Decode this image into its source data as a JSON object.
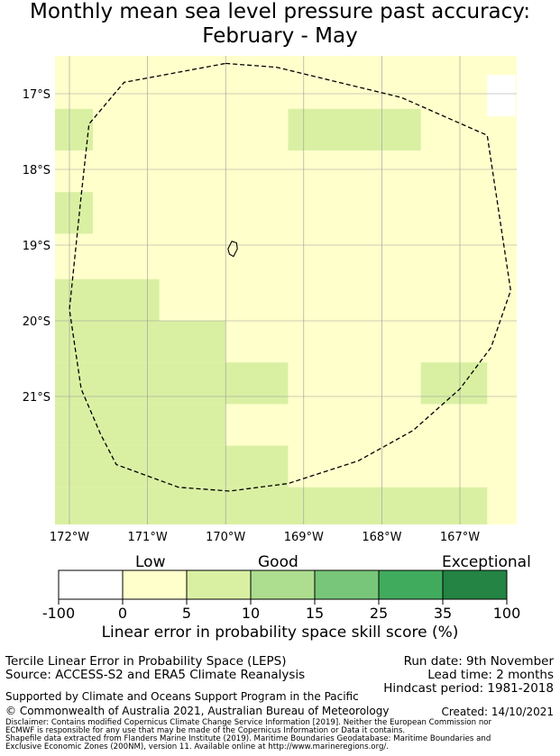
{
  "title": {
    "line1": "Monthly mean sea level pressure past accuracy:",
    "line2": "February - May"
  },
  "map": {
    "lat_labels": [
      "17°S",
      "18°S",
      "19°S",
      "20°S",
      "21°S"
    ],
    "lon_labels": [
      "172°W",
      "171°W",
      "170°W",
      "169°W",
      "168°W",
      "167°W"
    ],
    "lon_range_deg": [
      -172.2,
      -166.3
    ],
    "lat_range_deg": [
      -16.5,
      -22.7
    ],
    "colors": {
      "no_skill": "#ffffff",
      "low": "#ffffcc",
      "good": "#d9f0a3",
      "gridline": "#999999",
      "boundary": "#000000"
    },
    "cell_grid_note": "Pale yellow = Low (0-5); light green = Good (5-10)",
    "green_cells_deg": [
      {
        "lon": [
          -172.2,
          -171.7
        ],
        "lat": [
          -17.2,
          -17.75
        ]
      },
      {
        "lon": [
          -169.2,
          -167.5
        ],
        "lat": [
          -17.2,
          -17.75
        ]
      },
      {
        "lon": [
          -172.2,
          -171.7
        ],
        "lat": [
          -18.3,
          -18.85
        ]
      },
      {
        "lon": [
          -172.2,
          -170.85
        ],
        "lat": [
          -19.45,
          -20.0
        ]
      },
      {
        "lon": [
          -172.2,
          -170.0
        ],
        "lat": [
          -20.0,
          -20.55
        ]
      },
      {
        "lon": [
          -172.2,
          -169.2
        ],
        "lat": [
          -20.55,
          -21.1
        ]
      },
      {
        "lon": [
          -167.5,
          -166.65
        ],
        "lat": [
          -20.55,
          -21.1
        ]
      },
      {
        "lon": [
          -172.2,
          -170.0
        ],
        "lat": [
          -21.1,
          -21.65
        ]
      },
      {
        "lon": [
          -172.2,
          -169.2
        ],
        "lat": [
          -21.65,
          -22.2
        ]
      },
      {
        "lon": [
          -172.2,
          -166.65
        ],
        "lat": [
          -22.2,
          -22.7
        ]
      }
    ],
    "white_cells_deg": [
      {
        "lon": [
          -166.65,
          -166.3
        ],
        "lat": [
          -16.75,
          -17.3
        ]
      }
    ],
    "eez_boundary_deg": [
      [
        -170.0,
        -16.6
      ],
      [
        -169.35,
        -16.65
      ],
      [
        -167.75,
        -17.05
      ],
      [
        -166.65,
        -17.55
      ],
      [
        -166.35,
        -19.6
      ],
      [
        -166.6,
        -20.35
      ],
      [
        -167.0,
        -20.9
      ],
      [
        -167.6,
        -21.45
      ],
      [
        -168.3,
        -21.85
      ],
      [
        -169.2,
        -22.15
      ],
      [
        -169.95,
        -22.25
      ],
      [
        -170.6,
        -22.2
      ],
      [
        -171.4,
        -21.9
      ],
      [
        -171.6,
        -21.5
      ],
      [
        -171.85,
        -20.9
      ],
      [
        -172.0,
        -19.85
      ],
      [
        -171.85,
        -18.35
      ],
      [
        -171.75,
        -17.4
      ],
      [
        -171.3,
        -16.85
      ],
      [
        -170.0,
        -16.6
      ]
    ],
    "island_deg": [
      [
        -169.92,
        -18.95
      ],
      [
        -169.86,
        -18.97
      ],
      [
        -169.85,
        -19.05
      ],
      [
        -169.9,
        -19.15
      ],
      [
        -169.95,
        -19.12
      ],
      [
        -169.97,
        -19.05
      ],
      [
        -169.92,
        -18.95
      ]
    ]
  },
  "colorbar": {
    "category_labels": [
      "Low",
      "Good",
      "Exceptional"
    ],
    "tick_labels": [
      "-100",
      "0",
      "5",
      "10",
      "15",
      "25",
      "35",
      "100"
    ],
    "segment_colors": [
      "#ffffff",
      "#ffffcc",
      "#d9f0a3",
      "#addd8e",
      "#78c679",
      "#41ab5d",
      "#238443"
    ],
    "title": "Linear error in probability space skill score (%)"
  },
  "footer": {
    "left_line1": "Tercile Linear Error in Probability Space (LEPS)",
    "left_line2": "Source: ACCESS-S2 and ERA5 Climate Reanalysis",
    "run_date": "Run date: 9th November",
    "lead_time": "Lead time: 2 months",
    "hindcast": "Hindcast period: 1981-2018",
    "support": "Supported by Climate and Oceans Support Program in the Pacific",
    "copyright": "© Commonwealth of Australia 2021, Australian Bureau of Meteorology",
    "created": "Created: 14/10/2021",
    "disclaimer1": "Disclaimer: Contains modified Copernicus Climate Change Service Information [2019]. Neither the European Commission nor",
    "disclaimer2": "ECMWF is responsible for any use that may be made of the Copernicus Information or Data it contains.",
    "shapefile1": "Shapefile data extracted from Flanders Marine Institute (2019). Maritime Boundaries Geodatabase: Maritime Boundaries and",
    "shapefile2": "Exclusive Economic Zones (200NM), version 11. Available online at http://www.marineregions.org/."
  }
}
